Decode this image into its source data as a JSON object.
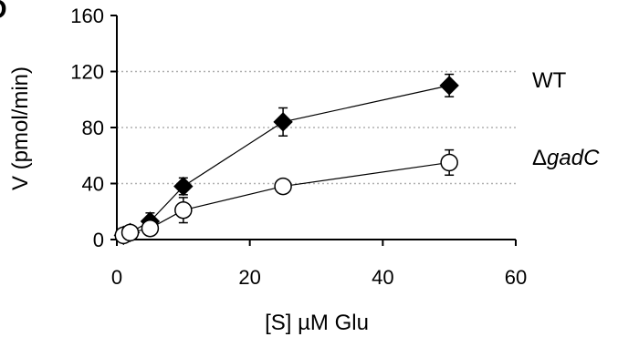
{
  "panel_letter": "D",
  "chart_data": {
    "type": "scatter",
    "xlabel": "[S] µM Glu",
    "ylabel": "V (pmol/min)",
    "xlim": [
      0,
      60
    ],
    "ylim": [
      0,
      160
    ],
    "xticks": [
      0,
      20,
      40,
      60
    ],
    "yticks": [
      0,
      40,
      80,
      120,
      160
    ],
    "grid": "horizontal dotted",
    "series": [
      {
        "name": "WT",
        "marker": "filled-diamond",
        "color": "#000000",
        "x": [
          1,
          2,
          5,
          10,
          25,
          50
        ],
        "y": [
          3,
          5,
          13,
          38,
          84,
          110
        ],
        "err": [
          1,
          3,
          6,
          6,
          10,
          8
        ]
      },
      {
        "name": "ΔgadC",
        "marker": "open-circle",
        "color": "#000000",
        "x": [
          1,
          2,
          5,
          10,
          25,
          50
        ],
        "y": [
          3,
          5,
          8,
          21,
          38,
          55
        ],
        "err": [
          0,
          0,
          3,
          9,
          0,
          9
        ]
      }
    ]
  },
  "labels": {
    "wt": "WT",
    "ko_prefix": "Δ",
    "ko_gene": "gadC"
  }
}
